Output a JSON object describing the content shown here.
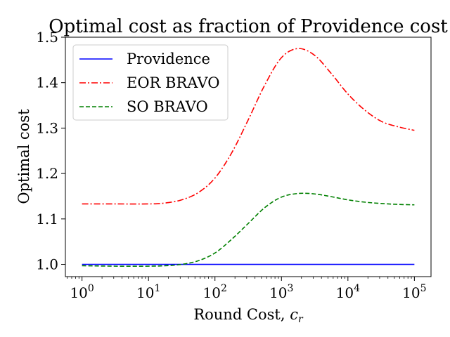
{
  "chart_data": {
    "type": "line",
    "title": "Optimal cost as fraction of Providence cost",
    "xlabel_main": "Round Cost, ",
    "xlabel_var": "c",
    "xlabel_sub": "r",
    "ylabel": "Optimal cost",
    "xscale": "log",
    "xlim_log10": [
      -0.25,
      5.25
    ],
    "ylim": [
      0.973,
      1.5
    ],
    "x_ticks": [
      {
        "base": "10",
        "exp": "0",
        "log10": 0
      },
      {
        "base": "10",
        "exp": "1",
        "log10": 1
      },
      {
        "base": "10",
        "exp": "2",
        "log10": 2
      },
      {
        "base": "10",
        "exp": "3",
        "log10": 3
      },
      {
        "base": "10",
        "exp": "4",
        "log10": 4
      },
      {
        "base": "10",
        "exp": "5",
        "log10": 5
      }
    ],
    "y_ticks": [
      {
        "label": "1.0",
        "value": 1.0
      },
      {
        "label": "1.1",
        "value": 1.1
      },
      {
        "label": "1.2",
        "value": 1.2
      },
      {
        "label": "1.3",
        "value": 1.3
      },
      {
        "label": "1.4",
        "value": 1.4
      },
      {
        "label": "1.5",
        "value": 1.5
      }
    ],
    "legend_position": "top-left",
    "series": [
      {
        "name": "Providence",
        "color": "#0000ff",
        "style": "solid",
        "x_log10": [
          0,
          5
        ],
        "values": [
          1.0,
          1.0
        ]
      },
      {
        "name": "EOR BRAVO",
        "color": "#ff0000",
        "style": "dashdot",
        "x_log10": [
          0,
          0.5,
          1.0,
          1.25,
          1.5,
          1.75,
          2.0,
          2.25,
          2.5,
          2.75,
          3.0,
          3.25,
          3.5,
          3.75,
          4.0,
          4.25,
          4.5,
          4.75,
          5.0
        ],
        "values": [
          1.133,
          1.133,
          1.133,
          1.135,
          1.142,
          1.158,
          1.19,
          1.245,
          1.318,
          1.395,
          1.455,
          1.475,
          1.46,
          1.42,
          1.375,
          1.34,
          1.315,
          1.303,
          1.295
        ]
      },
      {
        "name": "SO BRAVO",
        "color": "#008000",
        "style": "dashed",
        "x_log10": [
          0,
          0.5,
          1.0,
          1.25,
          1.5,
          1.75,
          2.0,
          2.25,
          2.5,
          2.75,
          3.0,
          3.25,
          3.5,
          3.75,
          4.0,
          4.25,
          4.5,
          4.75,
          5.0
        ],
        "values": [
          0.997,
          0.996,
          0.996,
          0.997,
          1.0,
          1.008,
          1.025,
          1.055,
          1.09,
          1.125,
          1.148,
          1.156,
          1.155,
          1.149,
          1.142,
          1.137,
          1.134,
          1.132,
          1.131
        ]
      }
    ]
  }
}
